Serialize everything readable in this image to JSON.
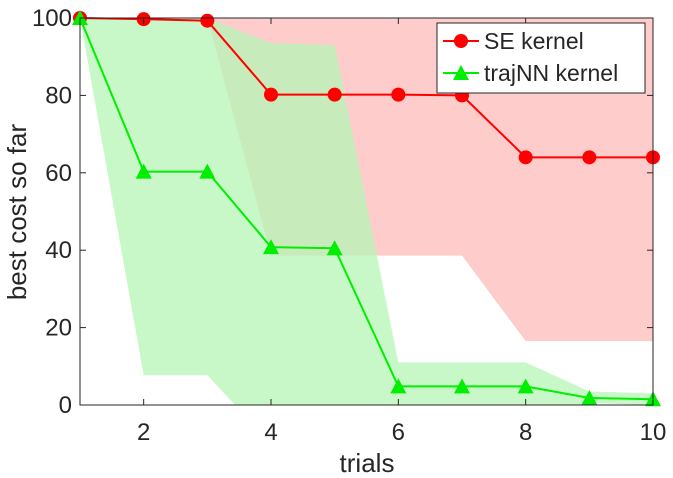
{
  "chart_data": {
    "type": "line",
    "xlabel": "trials",
    "ylabel": "best cost so far",
    "xlim": [
      1,
      10
    ],
    "ylim": [
      0,
      100
    ],
    "xticks": [
      2,
      4,
      6,
      8,
      10
    ],
    "yticks": [
      0,
      20,
      40,
      60,
      80,
      100
    ],
    "x": [
      1,
      2,
      3,
      4,
      5,
      6,
      7,
      8,
      9,
      10
    ],
    "legend_position": "top-right",
    "grid": false,
    "series": [
      {
        "name": "SE kernel",
        "color": "#ff0000",
        "band_color": "#ffcccc",
        "marker": "circle",
        "values": [
          100,
          99.7,
          99.3,
          80.2,
          80.2,
          80.2,
          80,
          64,
          64,
          64
        ],
        "band_lower": [
          100,
          100,
          100,
          38.6,
          38.6,
          38.6,
          38.6,
          16.5,
          16.5,
          16.5
        ],
        "band_upper": [
          100,
          100,
          100,
          100,
          100,
          100,
          100,
          100,
          100,
          100
        ]
      },
      {
        "name": "trajNN kernel",
        "color": "#00ee00",
        "band_color": "#b6f5b6",
        "marker": "triangle",
        "values": [
          100,
          60.3,
          60.3,
          40.8,
          40.5,
          4.8,
          4.8,
          4.8,
          1.8,
          1.5
        ],
        "band_lower": [
          100,
          7.7,
          7.7,
          -10,
          -10,
          -10,
          -10,
          -10,
          0.5,
          0
        ],
        "band_upper": [
          100,
          100,
          100,
          93.5,
          93,
          11,
          11,
          11,
          3.5,
          3
        ]
      }
    ]
  }
}
